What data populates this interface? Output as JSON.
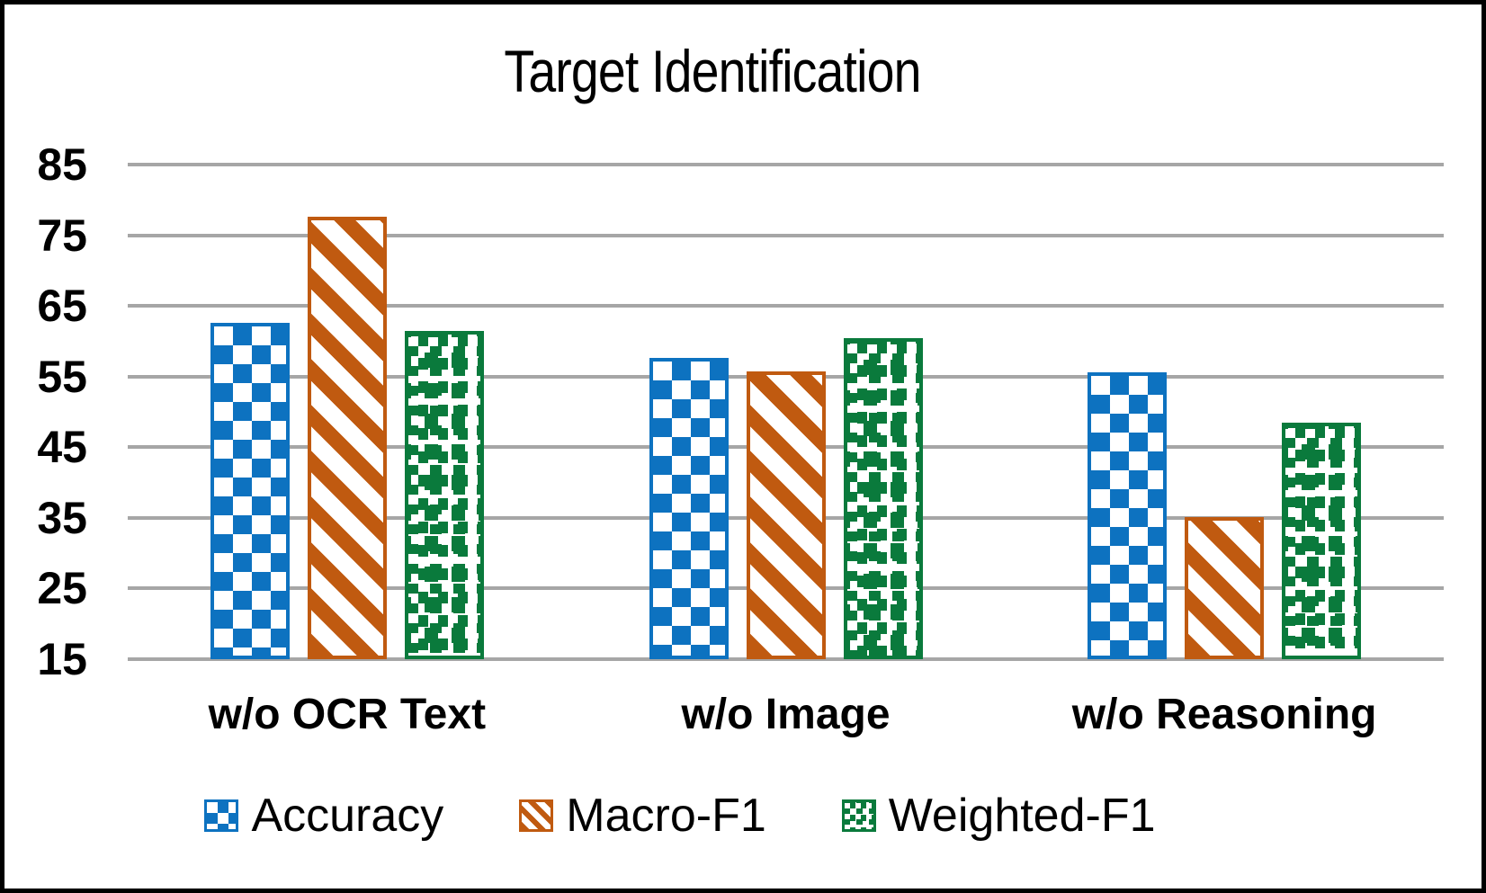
{
  "chart_data": {
    "type": "bar",
    "title": "Target Identification",
    "categories": [
      "w/o OCR Text",
      "w/o Image",
      "w/o Reasoning"
    ],
    "series": [
      {
        "name": "Accuracy",
        "color": "#0d72c0",
        "pattern": "checkerboard",
        "values": [
          62.6,
          57.7,
          55.6
        ]
      },
      {
        "name": "Macro-F1",
        "color": "#c05a10",
        "pattern": "diagonal-stripes",
        "values": [
          77.6,
          55.7,
          35.1
        ]
      },
      {
        "name": "Weighted-F1",
        "color": "#0a7a3c",
        "pattern": "scattered-squares",
        "values": [
          61.4,
          60.5,
          48.5
        ]
      }
    ],
    "ylim": [
      15,
      85
    ],
    "yticks": [
      15,
      25,
      35,
      45,
      55,
      65,
      75,
      85
    ],
    "grid": "horizontal",
    "gridline_color": "#a6a6a6",
    "legend_position": "bottom",
    "xlabel": "",
    "ylabel": ""
  }
}
